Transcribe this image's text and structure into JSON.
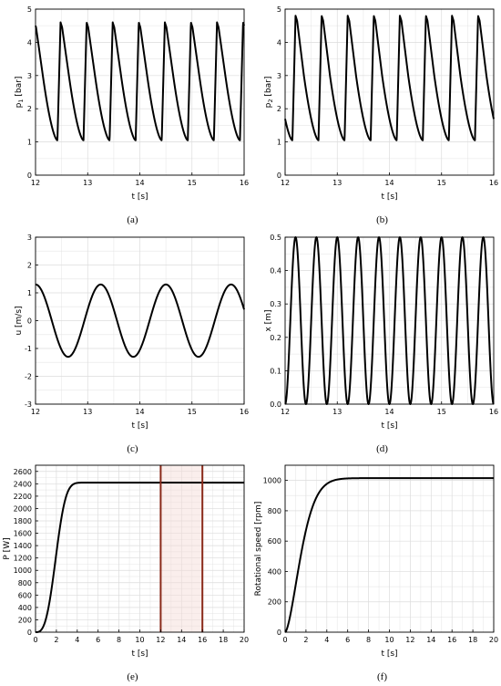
{
  "chart_data": [
    {
      "id": "a",
      "type": "line",
      "caption": "(a)",
      "xlabel": "t [s]",
      "ylabel": "p1 [bar]",
      "ylabel_main": "p",
      "ylabel_sub": "1",
      "ylabel_tail": " [bar]",
      "xlim": [
        12,
        16
      ],
      "ylim": [
        0,
        5
      ],
      "xticks": [
        12,
        13,
        14,
        15,
        16
      ],
      "yticks": [
        0,
        1,
        2,
        3,
        4,
        5
      ],
      "grid": true,
      "waveform": {
        "kind": "pressure",
        "period": 0.5,
        "peak_time": 12.48,
        "peak": 4.6,
        "knee": 3.0,
        "min": 1.05
      },
      "series": [
        {
          "color": "#000000"
        }
      ]
    },
    {
      "id": "b",
      "type": "line",
      "caption": "(b)",
      "xlabel": "t [s]",
      "ylabel": "p2 [bar]",
      "ylabel_main": "p",
      "ylabel_sub": "2",
      "ylabel_tail": " [bar]",
      "xlim": [
        12,
        16
      ],
      "ylim": [
        0,
        5
      ],
      "xticks": [
        12,
        13,
        14,
        15,
        16
      ],
      "yticks": [
        0,
        1,
        2,
        3,
        4,
        5
      ],
      "grid": true,
      "waveform": {
        "kind": "pressure",
        "period": 0.5,
        "peak_time": 12.2,
        "peak": 4.8,
        "knee": 3.0,
        "min": 1.05
      },
      "series": [
        {
          "color": "#000000"
        }
      ]
    },
    {
      "id": "c",
      "type": "line",
      "caption": "(c)",
      "xlabel": "t [s]",
      "ylabel": "u [m/s]",
      "xlim": [
        12,
        16
      ],
      "ylim": [
        -3,
        3
      ],
      "xticks": [
        12,
        13,
        14,
        15,
        16
      ],
      "yticks": [
        -3,
        -2,
        -1,
        0,
        1,
        2,
        3
      ],
      "grid": true,
      "waveform": {
        "kind": "sine",
        "amplitude": 1.3,
        "period": 1.25,
        "peak_time": 12.0
      },
      "series": [
        {
          "color": "#000000"
        }
      ]
    },
    {
      "id": "d",
      "type": "line",
      "caption": "(d)",
      "xlabel": "t [s]",
      "ylabel": "x [m]",
      "xlim": [
        12,
        16
      ],
      "ylim": [
        0,
        0.5
      ],
      "xticks": [
        12,
        13,
        14,
        15,
        16
      ],
      "yticks": [
        0.0,
        0.1,
        0.2,
        0.3,
        0.4,
        0.5
      ],
      "ytick_labels": [
        "0.0",
        "0.1",
        "0.2",
        "0.3",
        "0.4",
        "0.5"
      ],
      "grid": true,
      "waveform": {
        "kind": "cosine_offset",
        "center": 0.25,
        "amplitude": 0.25,
        "period": 0.4,
        "trough_time": 12.0
      },
      "series": [
        {
          "color": "#000000"
        }
      ]
    },
    {
      "id": "e",
      "type": "line",
      "caption": "(e)",
      "xlabel": "t [s]",
      "ylabel": "P [W]",
      "xlim": [
        0,
        20
      ],
      "ylim": [
        0,
        2700
      ],
      "xticks": [
        0,
        2,
        4,
        6,
        8,
        10,
        12,
        14,
        16,
        18,
        20
      ],
      "yticks": [
        0,
        200,
        400,
        600,
        800,
        1000,
        1200,
        1400,
        1600,
        1800,
        2000,
        2200,
        2400,
        2600
      ],
      "grid": true,
      "waveform": {
        "kind": "rise",
        "final": 2420,
        "tau": 2.2,
        "power": 3
      },
      "markers": [
        {
          "x": 12,
          "color": "#8a2a1a"
        },
        {
          "x": 16,
          "color": "#8a2a1a"
        }
      ],
      "shaded_interval": [
        12,
        16
      ],
      "series": [
        {
          "color": "#000000"
        }
      ]
    },
    {
      "id": "f",
      "type": "line",
      "caption": "(f)",
      "xlabel": "t [s]",
      "ylabel": "Rotational speed [rpm]",
      "xlim": [
        0,
        20
      ],
      "ylim": [
        0,
        1100
      ],
      "xticks": [
        0,
        2,
        4,
        6,
        8,
        10,
        12,
        14,
        16,
        18,
        20
      ],
      "yticks": [
        0,
        200,
        400,
        600,
        800,
        1000
      ],
      "grid": true,
      "waveform": {
        "kind": "rise",
        "final": 1015,
        "tau": 1.9,
        "power": 1.6
      },
      "series": [
        {
          "color": "#000000"
        }
      ]
    }
  ]
}
